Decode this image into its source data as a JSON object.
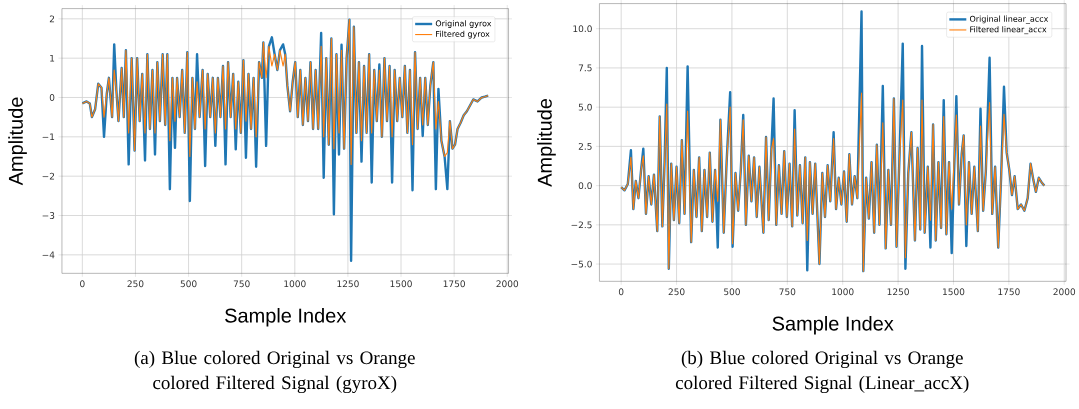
{
  "chart_data": [
    {
      "type": "line",
      "xlabel": "Sample Index",
      "ylabel": "Amplitude",
      "annotations": [
        "(a)   Blue colored Original vs Orange colored Filtered Signal (gyroX)"
      ],
      "xlim": [
        -96,
        2006
      ],
      "ylim": [
        -4.47,
        2.26
      ],
      "xticks": [
        0,
        250,
        500,
        750,
        1000,
        1250,
        1500,
        1750,
        2000
      ],
      "yticks": [
        {
          "value": -4,
          "label": "−4"
        },
        {
          "value": -3,
          "label": "−3"
        },
        {
          "value": -2,
          "label": "−2"
        },
        {
          "value": -1,
          "label": "−1"
        },
        0,
        1,
        2
      ],
      "grid": true,
      "legend": "top right",
      "series": [
        {
          "name": "Original gyrox",
          "color": "#1f77b4",
          "x": [
            0,
            20,
            35,
            45,
            60,
            75,
            90,
            102,
            115,
            125,
            140,
            150,
            160,
            170,
            185,
            195,
            205,
            218,
            232,
            246,
            258,
            270,
            282,
            295,
            306,
            318,
            330,
            342,
            353,
            365,
            378,
            390,
            400,
            412,
            424,
            436,
            446,
            458,
            470,
            482,
            494,
            506,
            518,
            530,
            540,
            552,
            566,
            578,
            590,
            602,
            614,
            626,
            638,
            650,
            662,
            674,
            686,
            698,
            710,
            722,
            734,
            746,
            758,
            770,
            782,
            794,
            806,
            818,
            832,
            845,
            852,
            865,
            878,
            892,
            905,
            918,
            930,
            945,
            955,
            965,
            978,
            990,
            1002,
            1014,
            1026,
            1038,
            1050,
            1062,
            1074,
            1086,
            1098,
            1110,
            1124,
            1136,
            1148,
            1160,
            1172,
            1184,
            1196,
            1208,
            1220,
            1232,
            1244,
            1257,
            1265,
            1278,
            1290,
            1302,
            1314,
            1326,
            1338,
            1350,
            1362,
            1374,
            1386,
            1398,
            1410,
            1422,
            1434,
            1446,
            1458,
            1470,
            1482,
            1494,
            1506,
            1518,
            1530,
            1542,
            1554,
            1566,
            1578,
            1590,
            1602,
            1614,
            1626,
            1638,
            1652,
            1664,
            1676,
            1690,
            1705,
            1718,
            1730,
            1742,
            1754,
            1766,
            1780,
            1795,
            1810,
            1825,
            1840,
            1860,
            1880,
            1895,
            1910
          ],
          "values": [
            -0.15,
            -0.1,
            -0.15,
            -0.5,
            -0.3,
            0.35,
            0.25,
            -1.0,
            0.1,
            0.5,
            -0.5,
            1.35,
            0.2,
            -0.6,
            0.75,
            -0.5,
            1.2,
            -1.7,
            1.0,
            -1.35,
            1.0,
            -0.6,
            0.6,
            -1.6,
            1.1,
            -0.8,
            0.7,
            -1.45,
            0.9,
            -0.6,
            1.1,
            -0.7,
            1.1,
            -2.33,
            0.5,
            -1.28,
            0.5,
            -0.5,
            0.7,
            -0.9,
            1.15,
            -2.63,
            0.5,
            -0.8,
            1.1,
            -0.5,
            0.7,
            -1.74,
            0.6,
            -0.5,
            0.5,
            -1.23,
            0.5,
            -0.5,
            0.8,
            -1.7,
            0.9,
            -0.5,
            0.6,
            -1.32,
            0.4,
            -0.9,
            0.95,
            -1.53,
            0.6,
            -0.8,
            0.5,
            -1.76,
            0.9,
            0.5,
            1.4,
            -1.23,
            1.3,
            1.53,
            1.1,
            0.7,
            1.2,
            1.35,
            1.1,
            0.3,
            -0.35,
            0.4,
            0.9,
            -0.5,
            0.7,
            -0.7,
            0.5,
            -0.6,
            0.9,
            -0.8,
            0.7,
            -0.8,
            1.64,
            -2.04,
            1.0,
            -1.2,
            1.5,
            -2.97,
            1.1,
            -1.45,
            1.34,
            -1.3,
            1.0,
            1.98,
            -4.15,
            1.8,
            -0.9,
            0.9,
            -1.63,
            0.8,
            -0.9,
            1.1,
            -2.16,
            0.7,
            -0.6,
            0.84,
            -1.0,
            1.0,
            -0.6,
            0.8,
            -2.16,
            0.7,
            -0.6,
            0.5,
            -0.5,
            0.8,
            -0.9,
            0.7,
            -2.36,
            1.15,
            -0.8,
            0.5,
            -0.98,
            0.5,
            -0.7,
            0.3,
            0.9,
            -2.33,
            0.22,
            -1.1,
            -1.5,
            -2.33,
            -0.6,
            -1.3,
            -1.2,
            -0.8,
            -0.65,
            -0.45,
            -0.35,
            -0.2,
            -0.05,
            -0.1,
            0.0,
            0.02,
            0.05
          ]
        },
        {
          "name": "Filtered gyrox",
          "color": "#ff7f0e",
          "x": [
            0,
            20,
            35,
            45,
            60,
            75,
            90,
            102,
            115,
            125,
            140,
            150,
            160,
            170,
            185,
            195,
            205,
            218,
            232,
            246,
            258,
            270,
            282,
            295,
            306,
            318,
            330,
            342,
            353,
            365,
            378,
            390,
            400,
            412,
            424,
            436,
            446,
            458,
            470,
            482,
            494,
            506,
            518,
            530,
            540,
            552,
            566,
            578,
            590,
            602,
            614,
            626,
            638,
            650,
            662,
            674,
            686,
            698,
            710,
            722,
            734,
            746,
            758,
            770,
            782,
            794,
            806,
            818,
            832,
            845,
            852,
            865,
            878,
            892,
            905,
            918,
            930,
            945,
            955,
            965,
            978,
            990,
            1002,
            1014,
            1026,
            1038,
            1050,
            1062,
            1074,
            1086,
            1098,
            1110,
            1124,
            1136,
            1148,
            1160,
            1172,
            1184,
            1196,
            1208,
            1220,
            1232,
            1244,
            1257,
            1265,
            1278,
            1290,
            1302,
            1314,
            1326,
            1338,
            1350,
            1362,
            1374,
            1386,
            1398,
            1410,
            1422,
            1434,
            1446,
            1458,
            1470,
            1482,
            1494,
            1506,
            1518,
            1530,
            1542,
            1554,
            1566,
            1578,
            1590,
            1602,
            1614,
            1626,
            1638,
            1652,
            1664,
            1676,
            1690,
            1705,
            1718,
            1730,
            1742,
            1754,
            1766,
            1780,
            1795,
            1810,
            1825,
            1840,
            1860,
            1880,
            1895,
            1910
          ],
          "values": [
            -0.15,
            -0.1,
            -0.15,
            -0.5,
            -0.3,
            0.35,
            0.25,
            -0.5,
            0.1,
            0.5,
            -0.5,
            0.7,
            0.2,
            -0.6,
            0.75,
            -0.5,
            1.2,
            -0.9,
            1.0,
            -1.35,
            1.0,
            -0.6,
            0.6,
            -0.9,
            1.1,
            -0.8,
            0.7,
            -0.9,
            0.9,
            -0.6,
            1.1,
            -0.7,
            1.1,
            -1.1,
            0.5,
            -0.6,
            0.5,
            -0.5,
            0.7,
            -0.9,
            1.15,
            -1.5,
            0.5,
            -0.8,
            0.4,
            -0.5,
            0.7,
            -0.8,
            0.6,
            -0.5,
            0.5,
            -0.9,
            0.5,
            -0.5,
            0.8,
            -0.8,
            0.9,
            -0.5,
            0.6,
            -0.8,
            0.4,
            -0.9,
            0.95,
            -0.6,
            0.6,
            -0.8,
            0.5,
            -1.0,
            0.9,
            0.5,
            1.4,
            0.5,
            1.3,
            0.8,
            1.1,
            0.7,
            1.2,
            0.8,
            1.1,
            0.3,
            -0.35,
            0.4,
            0.9,
            -0.5,
            0.7,
            -0.7,
            0.5,
            -0.6,
            0.9,
            -0.8,
            0.7,
            -0.8,
            1.3,
            -1.0,
            1.0,
            -1.2,
            1.5,
            -1.3,
            1.1,
            -0.9,
            1.2,
            -1.3,
            1.0,
            1.98,
            -1.7,
            1.8,
            -0.9,
            0.9,
            -1.1,
            0.8,
            -0.9,
            1.1,
            -0.9,
            0.7,
            -0.6,
            0.7,
            -1.0,
            1.0,
            -0.6,
            0.8,
            -1.0,
            0.7,
            -0.6,
            0.5,
            -0.5,
            0.8,
            -0.9,
            0.7,
            -1.2,
            1.15,
            -0.8,
            0.5,
            -0.7,
            0.5,
            -0.7,
            0.3,
            0.9,
            -0.8,
            -0.1,
            -1.1,
            -1.5,
            -1.4,
            -0.6,
            -1.3,
            -1.2,
            -0.8,
            -0.65,
            -0.45,
            -0.35,
            -0.2,
            -0.05,
            -0.1,
            0.0,
            0.02,
            0.05
          ]
        }
      ]
    },
    {
      "type": "line",
      "xlabel": "Sample Index",
      "ylabel": "Amplitude",
      "annotations": [
        "(b)   Blue colored Original vs Orange colored Filtered Signal (Linear_accX)"
      ],
      "xlim": [
        -98,
        2008
      ],
      "ylim": [
        -6.1,
        11.6
      ],
      "xticks": [
        0,
        250,
        500,
        750,
        1000,
        1250,
        1500,
        1750,
        2000
      ],
      "yticks": [
        {
          "value": -5,
          "label": "−5.0"
        },
        {
          "value": -2.5,
          "label": "−2.5"
        },
        {
          "value": 0,
          "label": "0.0"
        },
        {
          "value": 2.5,
          "label": "2.5"
        },
        {
          "value": 5,
          "label": "5.0"
        },
        {
          "value": 7.5,
          "label": "7.5"
        },
        {
          "value": 10,
          "label": "10.0"
        }
      ],
      "grid": true,
      "legend": "top right",
      "series": [
        {
          "name": "Original linear_accx",
          "color": "#1f77b4",
          "x": [
            0,
            15,
            30,
            44,
            55,
            66,
            78,
            90,
            100,
            112,
            124,
            136,
            148,
            163,
            174,
            186,
            196,
            206,
            215,
            226,
            238,
            250,
            262,
            274,
            286,
            300,
            316,
            328,
            340,
            352,
            364,
            376,
            388,
            400,
            412,
            424,
            436,
            448,
            463,
            476,
            492,
            503,
            516,
            528,
            540,
            551,
            563,
            576,
            588,
            600,
            612,
            624,
            642,
            654,
            666,
            678,
            688,
            700,
            712,
            724,
            736,
            748,
            760,
            772,
            783,
            795,
            807,
            819,
            831,
            840,
            852,
            864,
            876,
            895,
            908,
            920,
            932,
            944,
            959,
            970,
            982,
            994,
            1006,
            1018,
            1030,
            1042,
            1054,
            1066,
            1085,
            1093,
            1106,
            1118,
            1130,
            1142,
            1154,
            1166,
            1181,
            1194,
            1206,
            1218,
            1231,
            1243,
            1256,
            1271,
            1283,
            1296,
            1310,
            1326,
            1338,
            1350,
            1358,
            1370,
            1384,
            1396,
            1408,
            1420,
            1432,
            1444,
            1456,
            1468,
            1480,
            1492,
            1513,
            1525,
            1537,
            1546,
            1558,
            1570,
            1582,
            1594,
            1610,
            1622,
            1634,
            1646,
            1663,
            1675,
            1688,
            1702,
            1715,
            1728,
            1740,
            1752,
            1764,
            1776,
            1790,
            1805,
            1820,
            1835,
            1848,
            1860,
            1872,
            1885,
            1898,
            1910
          ],
          "values": [
            -0.1,
            -0.3,
            0.1,
            2.25,
            -1.5,
            0.3,
            -0.8,
            1.0,
            2.35,
            -1.8,
            0.6,
            -1.2,
            0.7,
            -2.9,
            4.4,
            -2.6,
            1.5,
            7.5,
            -5.3,
            1.4,
            -2.2,
            1.2,
            -2.4,
            2.9,
            -1.8,
            7.6,
            -3.6,
            1.0,
            -2.0,
            1.8,
            -2.9,
            1.0,
            -2.0,
            2.1,
            -2.3,
            1.0,
            -3.95,
            4.2,
            -3.0,
            1.5,
            5.95,
            -3.9,
            0.8,
            -1.6,
            1.0,
            4.5,
            -2.5,
            1.9,
            -1.0,
            1.8,
            -2.0,
            1.2,
            -3.0,
            3.1,
            -2.2,
            2.3,
            5.55,
            -2.5,
            1.3,
            -1.8,
            2.2,
            -2.0,
            1.4,
            -2.6,
            4.8,
            -1.9,
            1.3,
            -2.4,
            1.8,
            -5.4,
            1.5,
            -1.8,
            1.4,
            -5.0,
            0.8,
            -2.0,
            1.3,
            -1.0,
            3.4,
            -1.5,
            0.5,
            -1.2,
            0.9,
            -2.3,
            2.0,
            -1.2,
            0.6,
            -0.8,
            11.1,
            -5.45,
            0.5,
            -2.1,
            1.5,
            -3.0,
            2.6,
            -2.5,
            6.35,
            -4.0,
            1.0,
            -2.5,
            5.55,
            -3.9,
            1.7,
            9.05,
            -5.3,
            0.8,
            3.4,
            -3.5,
            2.4,
            -2.8,
            8.9,
            -3.0,
            1.2,
            -3.95,
            3.9,
            -3.5,
            1.5,
            -2.7,
            5.45,
            -3.1,
            1.5,
            -4.3,
            5.7,
            -1.2,
            2.0,
            3.2,
            -3.85,
            1.5,
            -1.8,
            1.2,
            -2.9,
            4.9,
            -1.6,
            0.9,
            8.15,
            -1.8,
            1.2,
            -3.95,
            0.5,
            6.3,
            2.1,
            1.0,
            -0.6,
            0.6,
            -1.5,
            -1.2,
            -1.6,
            -0.8,
            1.4,
            0.4,
            -0.4,
            0.5,
            0.2,
            0.0
          ]
        },
        {
          "name": "Filtered linear_accx",
          "color": "#ff7f0e",
          "x": [
            0,
            15,
            30,
            44,
            55,
            66,
            78,
            90,
            100,
            112,
            124,
            136,
            148,
            163,
            174,
            186,
            196,
            206,
            215,
            226,
            238,
            250,
            262,
            274,
            286,
            300,
            316,
            328,
            340,
            352,
            364,
            376,
            388,
            400,
            412,
            424,
            436,
            448,
            463,
            476,
            492,
            503,
            516,
            528,
            540,
            551,
            563,
            576,
            588,
            600,
            612,
            624,
            642,
            654,
            666,
            678,
            688,
            700,
            712,
            724,
            736,
            748,
            760,
            772,
            783,
            795,
            807,
            819,
            831,
            840,
            852,
            864,
            876,
            895,
            908,
            920,
            932,
            944,
            959,
            970,
            982,
            994,
            1006,
            1018,
            1030,
            1042,
            1054,
            1066,
            1085,
            1093,
            1106,
            1118,
            1130,
            1142,
            1154,
            1166,
            1181,
            1194,
            1206,
            1218,
            1231,
            1243,
            1256,
            1271,
            1283,
            1296,
            1310,
            1326,
            1338,
            1350,
            1358,
            1370,
            1384,
            1396,
            1408,
            1420,
            1432,
            1444,
            1456,
            1468,
            1480,
            1492,
            1513,
            1525,
            1537,
            1546,
            1558,
            1570,
            1582,
            1594,
            1610,
            1622,
            1634,
            1646,
            1663,
            1675,
            1688,
            1702,
            1715,
            1728,
            1740,
            1752,
            1764,
            1776,
            1790,
            1805,
            1820,
            1835,
            1848,
            1860,
            1872,
            1885,
            1898,
            1910
          ],
          "values": [
            -0.1,
            -0.3,
            0.1,
            1.8,
            -1.5,
            0.3,
            -0.8,
            1.0,
            1.9,
            -1.8,
            0.6,
            -1.2,
            0.7,
            -2.9,
            4.4,
            -2.6,
            1.5,
            5.2,
            -5.3,
            1.4,
            -2.2,
            1.2,
            -2.4,
            2.9,
            -1.8,
            4.75,
            -3.6,
            1.0,
            -2.0,
            1.8,
            -2.9,
            1.0,
            -2.0,
            2.1,
            -2.3,
            1.0,
            -1.0,
            4.2,
            -3.0,
            1.5,
            5.0,
            -3.7,
            0.8,
            -1.6,
            1.0,
            4.2,
            -2.5,
            1.9,
            -1.0,
            1.8,
            -2.0,
            1.2,
            -3.0,
            3.1,
            -2.2,
            2.3,
            3.0,
            -2.5,
            1.3,
            -1.8,
            2.2,
            -2.0,
            1.4,
            -2.6,
            3.6,
            -1.9,
            1.3,
            -2.4,
            1.8,
            -3.5,
            1.5,
            -1.8,
            1.4,
            -5.0,
            0.8,
            -2.0,
            1.3,
            -1.0,
            3.0,
            -1.5,
            0.5,
            -1.2,
            0.9,
            -2.3,
            2.0,
            -1.2,
            0.6,
            -0.8,
            5.9,
            -5.45,
            0.5,
            -2.1,
            1.5,
            -3.0,
            2.6,
            -2.5,
            4.0,
            -4.0,
            1.0,
            -2.5,
            5.55,
            -3.9,
            1.7,
            5.45,
            -4.6,
            0.8,
            3.4,
            -3.5,
            2.4,
            -2.8,
            5.45,
            -3.0,
            1.2,
            -2.2,
            3.9,
            -3.5,
            1.5,
            -2.7,
            4.4,
            -3.1,
            1.5,
            -1.5,
            4.5,
            -1.2,
            2.0,
            3.2,
            -2.5,
            1.5,
            -1.8,
            1.2,
            -2.9,
            3.8,
            -1.6,
            0.9,
            5.3,
            -1.8,
            1.2,
            -3.95,
            0.5,
            4.55,
            2.1,
            1.0,
            -0.6,
            0.6,
            -1.5,
            -1.2,
            -1.6,
            -0.8,
            1.4,
            0.4,
            -0.4,
            0.5,
            0.2,
            0.0
          ]
        }
      ]
    }
  ]
}
